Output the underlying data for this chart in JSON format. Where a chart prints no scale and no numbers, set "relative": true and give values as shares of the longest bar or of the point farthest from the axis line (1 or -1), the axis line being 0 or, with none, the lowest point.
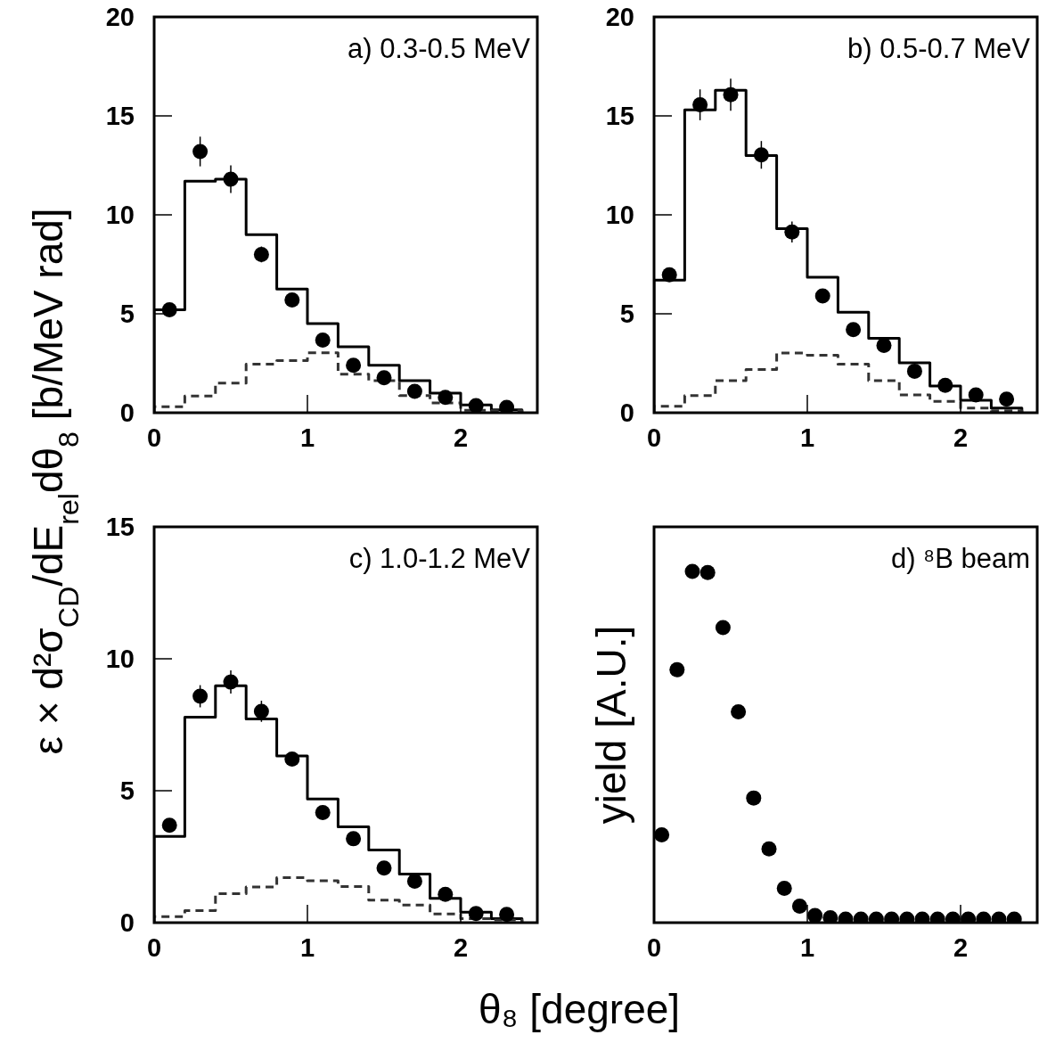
{
  "chart_data": [
    {
      "type": "histogram",
      "title": "a) 0.3-0.5 MeV",
      "ylabel": "ε × d²σ$_{CD}$/dE$_{rel}$dθ$_{8}$ [b/MeV rad]",
      "xlim": [
        0,
        2.5
      ],
      "ylim": [
        0,
        20
      ],
      "xticks": [
        0,
        1,
        2
      ],
      "yticks": [
        0,
        5,
        10,
        15,
        20
      ],
      "bins": [
        0,
        0.2,
        0.4,
        0.6,
        0.8,
        1.0,
        1.2,
        1.4,
        1.6,
        1.8,
        2.0,
        2.2,
        2.4
      ],
      "series": [
        {
          "type": "histogram",
          "color": "#000000",
          "line_style": "solid",
          "values": [
            5.2,
            11.7,
            11.8,
            9.0,
            6.25,
            4.5,
            3.33,
            2.4,
            1.62,
            0.99,
            0.39,
            0.15
          ]
        },
        {
          "type": "histogram",
          "color": "#333333",
          "line_style": "dashed",
          "values": [
            0.3,
            0.84,
            1.5,
            2.46,
            2.64,
            3.03,
            1.95,
            1.62,
            0.87,
            0.5,
            0.12,
            0.1
          ]
        },
        {
          "type": "scatter",
          "color": "#000000",
          "marker": "circle",
          "x": [
            0.1,
            0.3,
            0.5,
            0.7,
            0.9,
            1.1,
            1.3,
            1.5,
            1.7,
            1.9,
            2.1,
            2.3
          ],
          "values": [
            5.2,
            13.2,
            11.8,
            8.0,
            5.7,
            3.67,
            2.4,
            1.77,
            1.08,
            0.78,
            0.36,
            0.27
          ],
          "errors": [
            null,
            0.75,
            0.7,
            0.4,
            null,
            null,
            null,
            null,
            null,
            null,
            null,
            null
          ]
        }
      ]
    },
    {
      "type": "histogram",
      "title": "b) 0.5-0.7 MeV",
      "xlim": [
        0,
        2.5
      ],
      "ylim": [
        0,
        20
      ],
      "xticks": [
        0,
        1,
        2
      ],
      "yticks": [
        0,
        5,
        10,
        15,
        20
      ],
      "bins": [
        0,
        0.2,
        0.4,
        0.6,
        0.8,
        1.0,
        1.2,
        1.4,
        1.6,
        1.8,
        2.0,
        2.2,
        2.4
      ],
      "series": [
        {
          "type": "histogram",
          "color": "#000000",
          "line_style": "solid",
          "values": [
            6.7,
            15.3,
            16.3,
            13.0,
            9.3,
            6.85,
            5.08,
            3.76,
            2.52,
            1.35,
            0.63,
            0.24
          ]
        },
        {
          "type": "histogram",
          "color": "#333333",
          "line_style": "dashed",
          "values": [
            0.33,
            0.87,
            1.62,
            2.19,
            3.02,
            2.91,
            2.46,
            1.62,
            0.9,
            0.57,
            0.24,
            0.1
          ]
        },
        {
          "type": "scatter",
          "color": "#000000",
          "marker": "circle",
          "x": [
            0.1,
            0.3,
            0.5,
            0.7,
            0.9,
            1.1,
            1.3,
            1.5,
            1.7,
            1.9,
            2.1,
            2.3
          ],
          "values": [
            6.97,
            15.56,
            16.07,
            13.03,
            9.13,
            5.9,
            4.2,
            3.4,
            2.1,
            1.38,
            0.9,
            0.69
          ],
          "errors": [
            null,
            0.78,
            0.81,
            0.7,
            0.53,
            null,
            null,
            null,
            null,
            null,
            null,
            null
          ]
        }
      ]
    },
    {
      "type": "histogram",
      "title": "c) 1.0-1.2 MeV",
      "xlabel": "θ₈ [degree]",
      "xlim": [
        0,
        2.5
      ],
      "ylim": [
        0,
        15
      ],
      "xticks": [
        0,
        1,
        2
      ],
      "yticks": [
        0,
        5,
        10,
        15
      ],
      "bins": [
        0,
        0.2,
        0.4,
        0.6,
        0.8,
        1.0,
        1.2,
        1.4,
        1.6,
        1.8,
        2.0,
        2.2,
        2.4
      ],
      "series": [
        {
          "type": "histogram",
          "color": "#000000",
          "line_style": "solid",
          "values": [
            3.27,
            7.79,
            8.98,
            7.72,
            6.32,
            4.69,
            3.63,
            2.75,
            1.84,
            0.92,
            0.4,
            0.15
          ]
        },
        {
          "type": "histogram",
          "color": "#333333",
          "line_style": "dashed",
          "values": [
            0.23,
            0.46,
            1.1,
            1.35,
            1.71,
            1.59,
            1.37,
            0.85,
            0.67,
            0.33,
            0.15,
            0.1
          ]
        },
        {
          "type": "scatter",
          "color": "#000000",
          "marker": "circle",
          "x": [
            0.1,
            0.3,
            0.5,
            0.7,
            0.9,
            1.1,
            1.3,
            1.5,
            1.7,
            1.9,
            2.1,
            2.3
          ],
          "values": [
            3.69,
            8.58,
            9.12,
            8.01,
            6.2,
            4.17,
            3.18,
            2.07,
            1.57,
            1.07,
            0.35,
            0.31
          ],
          "errors": [
            null,
            0.42,
            0.44,
            0.4,
            null,
            null,
            null,
            null,
            null,
            null,
            null,
            null
          ]
        }
      ]
    },
    {
      "type": "scatter",
      "title": "d) ⁸B beam",
      "ylabel": "yield [A.U.]",
      "relative": true,
      "xlim": [
        0,
        2.5
      ],
      "xticks": [
        0,
        1,
        2
      ],
      "marker": "circle",
      "color": "#000000",
      "x": [
        0.05,
        0.15,
        0.25,
        0.35,
        0.45,
        0.55,
        0.65,
        0.75,
        0.85,
        0.95,
        1.05,
        1.15,
        1.25,
        1.35,
        1.45,
        1.55,
        1.65,
        1.75,
        1.85,
        1.95,
        2.05,
        2.15,
        2.25,
        2.35
      ],
      "values": [
        0.25,
        0.72,
        1.0,
        0.997,
        0.84,
        0.6,
        0.355,
        0.21,
        0.098,
        0.047,
        0.02,
        0.014,
        0.01,
        0.01,
        0.01,
        0.01,
        0.01,
        0.01,
        0.01,
        0.01,
        0.01,
        0.01,
        0.01,
        0.01
      ]
    }
  ]
}
